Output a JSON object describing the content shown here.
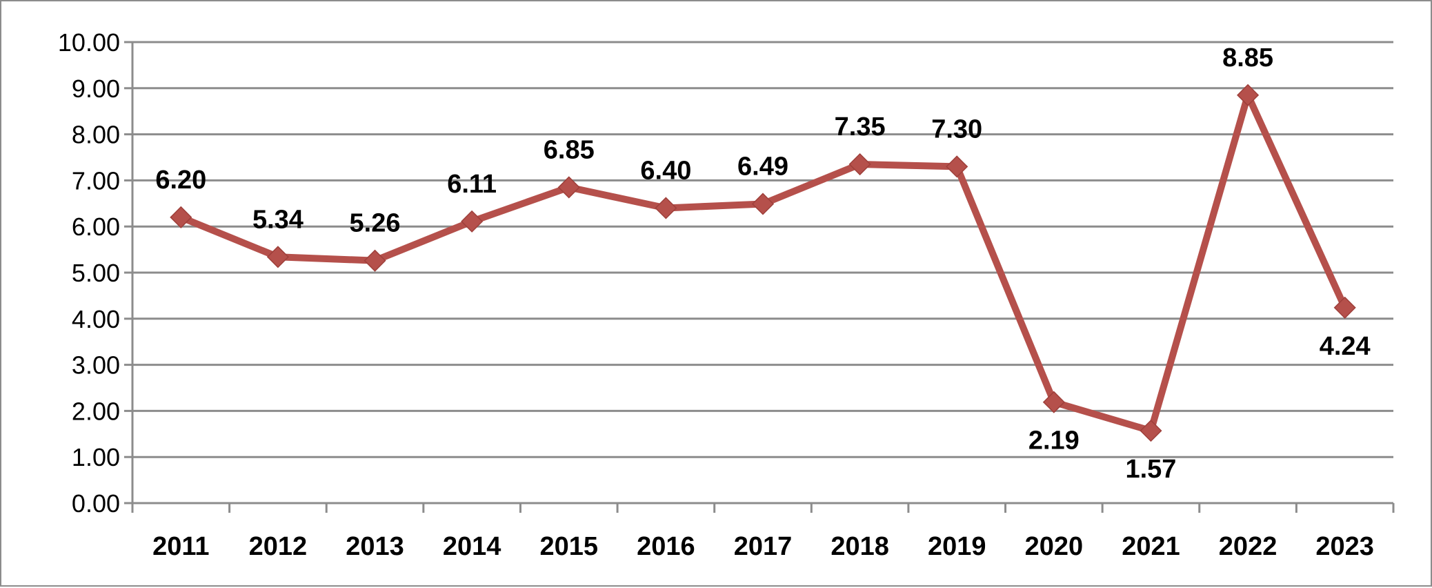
{
  "chart_data": {
    "type": "line",
    "categories": [
      "2011",
      "2012",
      "2013",
      "2014",
      "2015",
      "2016",
      "2017",
      "2018",
      "2019",
      "2020",
      "2021",
      "2022",
      "2023"
    ],
    "series": [
      {
        "values": [
          6.2,
          5.34,
          5.26,
          6.11,
          6.85,
          6.4,
          6.49,
          7.35,
          7.3,
          2.19,
          1.57,
          8.85,
          4.24
        ],
        "labels": [
          "6.20",
          "5.34",
          "5.26",
          "6.11",
          "6.85",
          "6.40",
          "6.49",
          "7.35",
          "7.30",
          "2.19",
          "1.57",
          "8.85",
          "4.24"
        ],
        "label_positions": [
          "above",
          "above",
          "above",
          "above",
          "above",
          "above",
          "above",
          "above",
          "above",
          "below",
          "below",
          "above",
          "below"
        ],
        "color": "#b5504b",
        "marker": "diamond"
      }
    ],
    "yticks": [
      "0.00",
      "1.00",
      "2.00",
      "3.00",
      "4.00",
      "5.00",
      "6.00",
      "7.00",
      "8.00",
      "9.00",
      "10.00"
    ],
    "ylim": [
      0,
      10
    ],
    "grid": true,
    "grid_color": "#8c8c8c",
    "legend": "none"
  }
}
